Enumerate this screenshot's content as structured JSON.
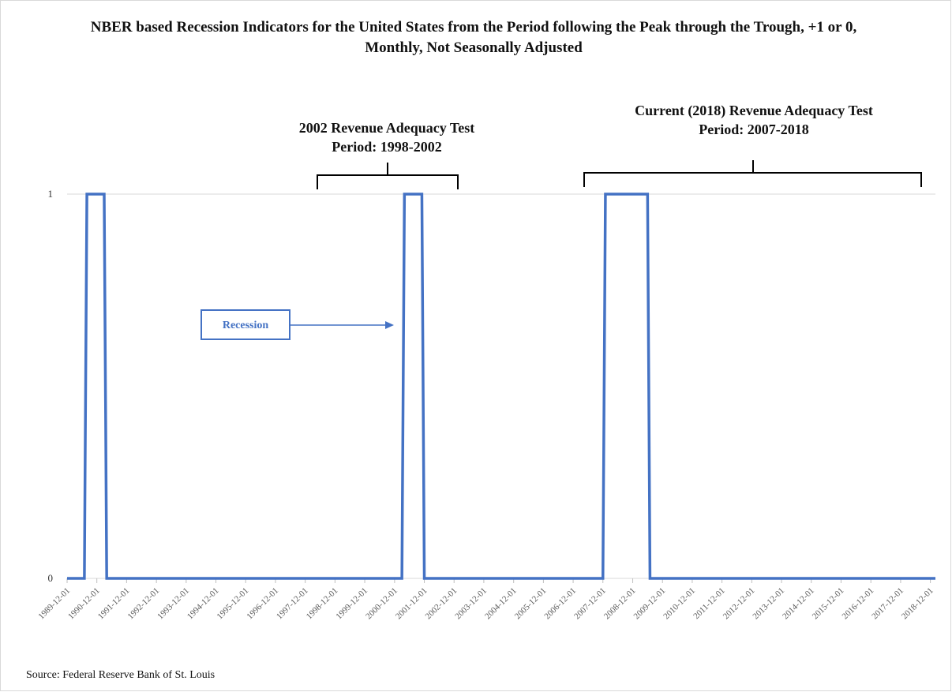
{
  "chart_data": {
    "type": "line",
    "title": "NBER based Recession Indicators for the United States from the Period following the Peak through the Trough, +1 or 0, Monthly, Not Seasonally Adjusted",
    "x": [
      "1989-12-01",
      "1990-07-01",
      "1990-08-01",
      "1991-03-01",
      "1991-04-01",
      "2001-03-01",
      "2001-04-01",
      "2001-11-01",
      "2001-12-01",
      "2007-12-01",
      "2008-01-01",
      "2009-06-01",
      "2009-07-01",
      "2019-02-01"
    ],
    "series": [
      {
        "name": "Recession",
        "color": "#4472c4",
        "values": [
          0,
          0,
          1,
          1,
          0,
          0,
          1,
          1,
          0,
          0,
          1,
          1,
          0,
          0
        ]
      }
    ],
    "xlim": [
      "1989-12-01",
      "2019-02-01"
    ],
    "xticks": [
      "1989-12-01",
      "1990-12-01",
      "1991-12-01",
      "1992-12-01",
      "1993-12-01",
      "1994-12-01",
      "1995-12-01",
      "1996-12-01",
      "1997-12-01",
      "1998-12-01",
      "1999-12-01",
      "2000-12-01",
      "2001-12-01",
      "2002-12-01",
      "2003-12-01",
      "2004-12-01",
      "2005-12-01",
      "2006-12-01",
      "2007-12-01",
      "2008-12-01",
      "2009-12-01",
      "2010-12-01",
      "2011-12-01",
      "2012-12-01",
      "2013-12-01",
      "2014-12-01",
      "2015-12-01",
      "2016-12-01",
      "2017-12-01",
      "2018-12-01"
    ],
    "ylim": [
      0,
      1
    ],
    "yticks": [
      0,
      1
    ],
    "grid": true,
    "annotations": [
      "2002 Revenue Adequacy Test Period: 1998-2002",
      "Current (2018) Revenue Adequacy Test Period: 2007-2018"
    ],
    "source": "Source: Federal Reserve Bank of St. Louis"
  }
}
